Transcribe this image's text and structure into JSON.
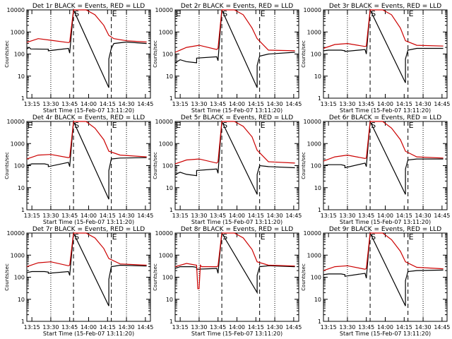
{
  "chart_data": [
    {
      "type": "line",
      "title": "Det 1r BLACK = Events, RED = LLD",
      "xlabel": "Start Time (15-Feb-07 13:11:20)",
      "ylabel": "Counts/sec",
      "xlim": [
        "13:11",
        "14:49"
      ],
      "ylim": [
        1,
        10000
      ],
      "yscale": "log",
      "xticks": [
        "13:15",
        "13:30",
        "13:45",
        "14:00",
        "14:15",
        "14:30",
        "14:45"
      ],
      "yticks": [
        "1",
        "10",
        "100",
        "1000",
        "10000"
      ],
      "markers": [
        {
          "label": "S",
          "time": "13:48"
        },
        {
          "label": "E",
          "time": "14:18"
        }
      ],
      "series": [
        {
          "name": "Events",
          "color": "#000000",
          "x": [
            "13:11",
            "13:13",
            "13:14",
            "13:28",
            "13:28",
            "13:44",
            "13:45",
            "13:48",
            "14:16",
            "14:16",
            "14:18",
            "14:20",
            "14:30",
            "14:46"
          ],
          "y": [
            170,
            200,
            170,
            165,
            140,
            180,
            110,
            10000,
            3,
            60,
            180,
            300,
            350,
            300
          ]
        },
        {
          "name": "LLD",
          "color": "#cc0000",
          "x": [
            "13:11",
            "13:15",
            "13:20",
            "13:30",
            "13:44",
            "13:45",
            "13:48",
            "13:58",
            "14:05",
            "14:12",
            "14:16",
            "14:20",
            "14:30",
            "14:46"
          ],
          "y": [
            340,
            400,
            500,
            420,
            330,
            350,
            10000,
            10000,
            6000,
            2000,
            700,
            500,
            400,
            350
          ]
        }
      ]
    },
    {
      "type": "line",
      "title": "Det 2r BLACK = Events, RED = LLD",
      "xlabel": "Start Time (15-Feb-07 13:11:20)",
      "ylabel": "Counts/sec",
      "xlim": [
        "13:11",
        "14:49"
      ],
      "ylim": [
        1,
        10000
      ],
      "yscale": "log",
      "xticks": [
        "13:15",
        "13:30",
        "13:45",
        "14:00",
        "14:15",
        "14:30",
        "14:45"
      ],
      "yticks": [
        "1",
        "10",
        "100",
        "1000",
        "10000"
      ],
      "markers": [
        {
          "label": "E",
          "time": "13:11"
        },
        {
          "label": "S",
          "time": "13:48"
        },
        {
          "label": "E",
          "time": "14:18"
        }
      ],
      "series": [
        {
          "name": "Events",
          "color": "#000000",
          "x": [
            "13:11",
            "13:15",
            "13:20",
            "13:28",
            "13:28",
            "13:44",
            "13:45",
            "13:48",
            "14:16",
            "14:16",
            "14:18",
            "14:25",
            "14:46"
          ],
          "y": [
            40,
            55,
            45,
            40,
            65,
            75,
            50,
            10000,
            3,
            30,
            80,
            100,
            120
          ]
        },
        {
          "name": "LLD",
          "color": "#cc0000",
          "x": [
            "13:11",
            "13:20",
            "13:30",
            "13:44",
            "13:45",
            "13:48",
            "13:58",
            "14:05",
            "14:12",
            "14:16",
            "14:25",
            "14:46"
          ],
          "y": [
            120,
            200,
            250,
            160,
            180,
            10000,
            10000,
            6000,
            1500,
            500,
            150,
            140
          ]
        }
      ]
    },
    {
      "type": "line",
      "title": "Det 3r BLACK = Events, RED = LLD",
      "xlabel": "Start Time (15-Feb-07 13:11:20)",
      "ylabel": "Counts/sec",
      "xlim": [
        "13:11",
        "14:49"
      ],
      "ylim": [
        1,
        10000
      ],
      "yscale": "log",
      "xticks": [
        "13:15",
        "13:30",
        "13:45",
        "14:00",
        "14:15",
        "14:30",
        "14:45"
      ],
      "yticks": [
        "1",
        "10",
        "100",
        "1000",
        "10000"
      ],
      "markers": [
        {
          "label": "S",
          "time": "13:48"
        },
        {
          "label": "E",
          "time": "14:18"
        }
      ],
      "series": [
        {
          "name": "Events",
          "color": "#000000",
          "x": [
            "13:11",
            "13:15",
            "13:25",
            "13:28",
            "13:28",
            "13:44",
            "13:45",
            "13:48",
            "14:16",
            "14:16",
            "14:18",
            "14:25",
            "14:46"
          ],
          "y": [
            140,
            150,
            150,
            140,
            130,
            160,
            100,
            10000,
            5,
            60,
            150,
            180,
            180
          ]
        },
        {
          "name": "LLD",
          "color": "#cc0000",
          "x": [
            "13:11",
            "13:20",
            "13:30",
            "13:44",
            "13:45",
            "13:48",
            "13:58",
            "14:05",
            "14:12",
            "14:16",
            "14:25",
            "14:46"
          ],
          "y": [
            180,
            270,
            300,
            220,
            230,
            10000,
            10000,
            6000,
            1500,
            400,
            250,
            230
          ]
        }
      ]
    },
    {
      "type": "line",
      "title": "Det 4r BLACK = Events, RED = LLD",
      "xlabel": "Start Time (15-Feb-07 13:11:20)",
      "ylabel": "Counts/sec",
      "xlim": [
        "13:11",
        "14:49"
      ],
      "ylim": [
        1,
        10000
      ],
      "yscale": "log",
      "xticks": [
        "13:15",
        "13:30",
        "13:45",
        "14:00",
        "14:15",
        "14:30",
        "14:45"
      ],
      "yticks": [
        "1",
        "10",
        "100",
        "1000",
        "10000"
      ],
      "markers": [
        {
          "label": "E",
          "time": "13:11"
        },
        {
          "label": "S",
          "time": "13:48"
        },
        {
          "label": "E",
          "time": "14:18"
        }
      ],
      "series": [
        {
          "name": "Events",
          "color": "#000000",
          "x": [
            "13:11",
            "13:15",
            "13:25",
            "13:28",
            "13:28",
            "13:44",
            "13:45",
            "13:48",
            "14:16",
            "14:16",
            "14:18",
            "14:25",
            "14:46"
          ],
          "y": [
            100,
            120,
            120,
            110,
            90,
            140,
            90,
            10000,
            3,
            60,
            200,
            220,
            230
          ]
        },
        {
          "name": "LLD",
          "color": "#cc0000",
          "x": [
            "13:11",
            "13:20",
            "13:30",
            "13:44",
            "13:45",
            "13:48",
            "13:58",
            "14:05",
            "14:12",
            "14:16",
            "14:25",
            "14:46"
          ],
          "y": [
            200,
            300,
            320,
            230,
            240,
            10000,
            10000,
            5000,
            1500,
            450,
            300,
            250
          ]
        }
      ]
    },
    {
      "type": "line",
      "title": "Det 5r BLACK = Events, RED = LLD",
      "xlabel": "Start Time (15-Feb-07 13:11:20)",
      "ylabel": "Counts/sec",
      "xlim": [
        "13:11",
        "14:49"
      ],
      "ylim": [
        1,
        10000
      ],
      "yscale": "log",
      "xticks": [
        "13:15",
        "13:30",
        "13:45",
        "14:00",
        "14:15",
        "14:30",
        "14:45"
      ],
      "yticks": [
        "1",
        "10",
        "100",
        "1000",
        "10000"
      ],
      "markers": [
        {
          "label": "E",
          "time": "13:11"
        },
        {
          "label": "S",
          "time": "13:48"
        },
        {
          "label": "E",
          "time": "14:18"
        }
      ],
      "series": [
        {
          "name": "Events",
          "color": "#000000",
          "x": [
            "13:11",
            "13:15",
            "13:20",
            "13:28",
            "13:28",
            "13:44",
            "13:45",
            "13:48",
            "14:16",
            "14:16",
            "14:18",
            "14:25",
            "14:46"
          ],
          "y": [
            40,
            50,
            40,
            35,
            60,
            70,
            45,
            10000,
            5,
            40,
            100,
            90,
            80
          ]
        },
        {
          "name": "LLD",
          "color": "#cc0000",
          "x": [
            "13:11",
            "13:20",
            "13:30",
            "13:44",
            "13:45",
            "13:48",
            "13:58",
            "14:05",
            "14:12",
            "14:16",
            "14:25",
            "14:46"
          ],
          "y": [
            120,
            180,
            200,
            130,
            150,
            10000,
            10000,
            6000,
            2000,
            500,
            150,
            130
          ]
        }
      ]
    },
    {
      "type": "line",
      "title": "Det 6r BLACK = Events, RED = LLD",
      "xlabel": "Start Time (15-Feb-07 13:11:20)",
      "ylabel": "Counts/sec",
      "xlim": [
        "13:11",
        "14:49"
      ],
      "ylim": [
        1,
        10000
      ],
      "yscale": "log",
      "xticks": [
        "13:15",
        "13:30",
        "13:45",
        "14:00",
        "14:15",
        "14:30",
        "14:45"
      ],
      "yticks": [
        "1",
        "10",
        "100",
        "1000",
        "10000"
      ],
      "markers": [
        {
          "label": "S",
          "time": "13:48"
        },
        {
          "label": "E",
          "time": "14:18"
        }
      ],
      "series": [
        {
          "name": "Events",
          "color": "#000000",
          "x": [
            "13:11",
            "13:15",
            "13:25",
            "13:28",
            "13:28",
            "13:44",
            "13:45",
            "13:48",
            "14:16",
            "14:16",
            "14:18",
            "14:25",
            "14:46"
          ],
          "y": [
            100,
            110,
            110,
            100,
            80,
            130,
            90,
            10000,
            5,
            70,
            180,
            200,
            200
          ]
        },
        {
          "name": "LLD",
          "color": "#cc0000",
          "x": [
            "13:11",
            "13:20",
            "13:30",
            "13:44",
            "13:45",
            "13:48",
            "13:58",
            "14:05",
            "14:12",
            "14:16",
            "14:25",
            "14:46"
          ],
          "y": [
            160,
            250,
            300,
            210,
            220,
            10000,
            10000,
            5000,
            1500,
            450,
            250,
            220
          ]
        }
      ]
    },
    {
      "type": "line",
      "title": "Det 7r BLACK = Events, RED = LLD",
      "xlabel": "Start Time (15-Feb-07 13:11:20)",
      "ylabel": "Counts/sec",
      "xlim": [
        "13:11",
        "14:49"
      ],
      "ylim": [
        1,
        10000
      ],
      "yscale": "log",
      "xticks": [
        "13:15",
        "13:30",
        "13:45",
        "14:00",
        "14:15",
        "14:30",
        "14:45"
      ],
      "yticks": [
        "1",
        "10",
        "100",
        "1000",
        "10000"
      ],
      "markers": [
        {
          "label": "S",
          "time": "13:48"
        },
        {
          "label": "E",
          "time": "14:18"
        }
      ],
      "series": [
        {
          "name": "Events",
          "color": "#000000",
          "x": [
            "13:11",
            "13:15",
            "13:25",
            "13:28",
            "13:28",
            "13:44",
            "13:45",
            "13:48",
            "14:16",
            "14:16",
            "14:18",
            "14:25",
            "14:46"
          ],
          "y": [
            160,
            180,
            180,
            170,
            150,
            180,
            120,
            10000,
            5,
            80,
            300,
            350,
            320
          ]
        },
        {
          "name": "LLD",
          "color": "#cc0000",
          "x": [
            "13:11",
            "13:20",
            "13:30",
            "13:44",
            "13:45",
            "13:48",
            "13:58",
            "14:05",
            "14:12",
            "14:16",
            "14:25",
            "14:46"
          ],
          "y": [
            300,
            450,
            500,
            330,
            350,
            10000,
            10000,
            6000,
            2000,
            700,
            400,
            350
          ]
        }
      ]
    },
    {
      "type": "line",
      "title": "Det 8r BLACK = Events, RED = LLD",
      "xlabel": "Start Time (15-Feb-07 13:11:20)",
      "ylabel": "Counts/sec",
      "xlim": [
        "13:11",
        "14:49"
      ],
      "ylim": [
        1,
        10000
      ],
      "yscale": "log",
      "xticks": [
        "13:15",
        "13:30",
        "13:45",
        "14:00",
        "14:15",
        "14:30",
        "14:45"
      ],
      "yticks": [
        "1",
        "10",
        "100",
        "1000",
        "10000"
      ],
      "markers": [
        {
          "label": "S",
          "time": "13:48"
        },
        {
          "label": "E",
          "time": "14:18"
        }
      ],
      "series": [
        {
          "name": "Events",
          "color": "#000000",
          "x": [
            "13:11",
            "13:15",
            "13:25",
            "13:28",
            "13:28",
            "13:44",
            "13:45",
            "13:48",
            "14:16",
            "14:16",
            "14:18",
            "14:25",
            "14:46"
          ],
          "y": [
            250,
            300,
            300,
            280,
            230,
            250,
            150,
            10000,
            20,
            120,
            300,
            330,
            300
          ]
        },
        {
          "name": "LLD",
          "color": "#cc0000",
          "x": [
            "13:11",
            "13:20",
            "13:28",
            "13:29",
            "13:30",
            "13:31",
            "13:32",
            "13:44",
            "13:45",
            "13:48",
            "13:58",
            "14:05",
            "14:12",
            "14:16",
            "14:25",
            "14:46"
          ],
          "y": [
            300,
            420,
            350,
            30,
            30,
            350,
            300,
            300,
            320,
            10000,
            10000,
            6000,
            1800,
            500,
            350,
            320
          ]
        }
      ]
    },
    {
      "type": "line",
      "title": "Det 9r BLACK = Events, RED = LLD",
      "xlabel": "Start Time (15-Feb-07 13:11:20)",
      "ylabel": "Counts/sec",
      "xlim": [
        "13:11",
        "14:49"
      ],
      "ylim": [
        1,
        10000
      ],
      "yscale": "log",
      "xticks": [
        "13:15",
        "13:30",
        "13:45",
        "14:00",
        "14:15",
        "14:30",
        "14:45"
      ],
      "yticks": [
        "1",
        "10",
        "100",
        "1000",
        "10000"
      ],
      "markers": [
        {
          "label": "S",
          "time": "13:48"
        },
        {
          "label": "E",
          "time": "14:18"
        }
      ],
      "series": [
        {
          "name": "Events",
          "color": "#000000",
          "x": [
            "13:11",
            "13:15",
            "13:25",
            "13:28",
            "13:28",
            "13:44",
            "13:45",
            "13:48",
            "14:16",
            "14:16",
            "14:18",
            "14:25",
            "14:46"
          ],
          "y": [
            130,
            140,
            140,
            130,
            110,
            150,
            90,
            10000,
            5,
            70,
            180,
            200,
            210
          ]
        },
        {
          "name": "LLD",
          "color": "#cc0000",
          "x": [
            "13:11",
            "13:20",
            "13:30",
            "13:44",
            "13:45",
            "13:48",
            "13:58",
            "14:05",
            "14:12",
            "14:16",
            "14:25",
            "14:46"
          ],
          "y": [
            200,
            300,
            330,
            230,
            250,
            10000,
            10000,
            5000,
            1500,
            500,
            280,
            240
          ]
        }
      ]
    }
  ]
}
